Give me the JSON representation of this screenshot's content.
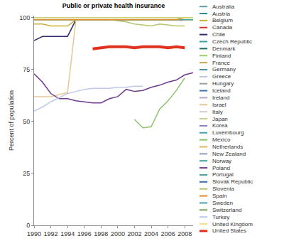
{
  "chart_data": {
    "type": "line",
    "title": "Public or private health insurance",
    "y_label": "Percent of population",
    "x": [
      1990,
      1991,
      1992,
      1993,
      1994,
      1995,
      1996,
      1997,
      1998,
      1999,
      2000,
      2001,
      2002,
      2003,
      2004,
      2005,
      2006,
      2007,
      2008,
      2009
    ],
    "xlim": [
      1990,
      2009
    ],
    "xticks": [
      1990,
      1992,
      1994,
      1996,
      1998,
      2000,
      2002,
      2004,
      2006,
      2008
    ],
    "ylim": [
      0,
      101
    ],
    "yticks": [
      0,
      25,
      50,
      75,
      100
    ],
    "grid": false,
    "series": [
      {
        "name": "Australia",
        "color": "#5f9ea0",
        "values": [
          100,
          100,
          100,
          100,
          100,
          100,
          100,
          100,
          100,
          100,
          100,
          100,
          100,
          100,
          100,
          100,
          100,
          100,
          100,
          100
        ]
      },
      {
        "name": "Austria",
        "color": "#2e8b8b",
        "values": [
          99,
          99,
          99,
          99,
          99,
          99,
          99,
          99,
          99,
          99,
          99,
          99,
          99,
          99,
          99,
          99,
          99,
          99,
          99,
          99
        ]
      },
      {
        "name": "Belgium",
        "color": "#c9b037",
        "values": [
          97,
          97,
          96,
          96,
          96,
          99,
          99,
          99,
          99,
          99,
          99,
          99,
          99,
          99,
          99,
          99,
          99,
          99,
          99,
          99
        ]
      },
      {
        "name": "Canada",
        "color": "#d9331f",
        "values": [
          100,
          100,
          100,
          100,
          100,
          100,
          100,
          100,
          100,
          100,
          100,
          100,
          100,
          100,
          100,
          100,
          100,
          100,
          100,
          100
        ]
      },
      {
        "name": "Chile",
        "color": "#2f2f6b",
        "values": [
          89,
          91,
          91,
          91,
          91,
          99,
          99,
          99,
          99,
          99,
          99,
          99,
          99,
          99,
          99,
          99,
          99,
          99,
          99,
          null
        ]
      },
      {
        "name": "Czech Republic",
        "color": "#3aa0a0",
        "values": [
          100,
          100,
          100,
          100,
          100,
          100,
          100,
          100,
          100,
          100,
          100,
          100,
          100,
          100,
          100,
          100,
          100,
          100,
          100,
          100
        ]
      },
      {
        "name": "Denmark",
        "color": "#1f6f5f",
        "values": [
          100,
          100,
          100,
          100,
          100,
          100,
          100,
          100,
          100,
          100,
          100,
          100,
          100,
          100,
          100,
          100,
          100,
          100,
          100,
          100
        ]
      },
      {
        "name": "Finland",
        "color": "#9acd6e",
        "values": [
          100,
          100,
          100,
          100,
          100,
          100,
          100,
          100,
          100,
          100,
          100,
          100,
          100,
          100,
          100,
          100,
          100,
          100,
          100,
          100
        ]
      },
      {
        "name": "France",
        "color": "#d2a35a",
        "values": [
          100,
          100,
          100,
          100,
          100,
          100,
          100,
          100,
          100,
          100,
          100,
          100,
          100,
          100,
          100,
          100,
          100,
          100,
          100,
          100
        ]
      },
      {
        "name": "Germany",
        "color": "#4f8fa8",
        "values": [
          100,
          100,
          100,
          100,
          100,
          100,
          100,
          100,
          100,
          100,
          100,
          100,
          100,
          100,
          100,
          100,
          100,
          100,
          100,
          100
        ]
      },
      {
        "name": "Greece",
        "color": "#b8c8d8",
        "values": [
          100,
          100,
          100,
          100,
          100,
          100,
          100,
          100,
          100,
          100,
          100,
          100,
          100,
          100,
          100,
          100,
          100,
          100,
          100,
          100
        ]
      },
      {
        "name": "Hungary",
        "color": "#9e9e9e",
        "values": [
          100,
          100,
          100,
          100,
          100,
          100,
          100,
          100,
          100,
          100,
          100,
          100,
          100,
          100,
          100,
          100,
          100,
          100,
          100,
          100
        ]
      },
      {
        "name": "Iceland",
        "color": "#3f74b8",
        "values": [
          100,
          100,
          100,
          100,
          100,
          100,
          100,
          100,
          100,
          100,
          100,
          100,
          100,
          100,
          100,
          100,
          100,
          100,
          100,
          100
        ]
      },
      {
        "name": "Ireland",
        "color": "#b7a3d1",
        "values": [
          100,
          100,
          100,
          100,
          100,
          100,
          100,
          100,
          100,
          100,
          100,
          100,
          100,
          100,
          100,
          100,
          100,
          100,
          100,
          100
        ]
      },
      {
        "name": "Israel",
        "color": "#e6c896",
        "values": [
          62,
          62,
          62,
          63,
          64,
          99,
          99,
          99,
          99,
          99,
          99,
          99,
          99,
          99,
          99,
          99,
          99,
          99,
          99,
          99
        ]
      },
      {
        "name": "Italy",
        "color": "#cfcfcf",
        "values": [
          100,
          100,
          100,
          100,
          100,
          100,
          100,
          100,
          100,
          100,
          100,
          100,
          100,
          100,
          100,
          100,
          100,
          100,
          100,
          100
        ]
      },
      {
        "name": "Japan",
        "color": "#c8cf8a",
        "values": [
          100,
          100,
          100,
          100,
          100,
          100,
          100,
          100,
          100,
          100,
          100,
          100,
          100,
          100,
          100,
          100,
          100,
          100,
          100,
          100
        ]
      },
      {
        "name": "Korea",
        "color": "#8a7fb8",
        "values": [
          100,
          100,
          100,
          100,
          100,
          100,
          100,
          100,
          100,
          100,
          100,
          100,
          100,
          100,
          100,
          100,
          100,
          100,
          100,
          100
        ]
      },
      {
        "name": "Luxembourg",
        "color": "#4aa3a3",
        "values": [
          99,
          99,
          99,
          99,
          99,
          99,
          99,
          99,
          99,
          99,
          99,
          99,
          99,
          99,
          99,
          99,
          99,
          99,
          99,
          99
        ]
      },
      {
        "name": "Mexico",
        "color": "#8dc26f",
        "values": [
          null,
          null,
          null,
          null,
          null,
          null,
          null,
          null,
          null,
          null,
          null,
          null,
          51,
          47,
          47.5,
          56,
          60,
          65,
          71,
          null
        ]
      },
      {
        "name": "Netherlands",
        "color": "#d9b95f",
        "values": [
          100,
          100,
          100,
          100,
          100,
          100,
          100,
          100,
          100,
          100,
          100,
          100,
          100,
          100,
          100,
          100,
          100,
          100,
          100,
          100
        ]
      },
      {
        "name": "New Zealand",
        "color": "#8aa0b8",
        "values": [
          100,
          100,
          100,
          100,
          100,
          100,
          100,
          100,
          100,
          100,
          100,
          100,
          100,
          100,
          100,
          100,
          100,
          100,
          100,
          100
        ]
      },
      {
        "name": "Norway",
        "color": "#3f9f9f",
        "values": [
          100,
          100,
          100,
          100,
          100,
          100,
          100,
          100,
          100,
          100,
          100,
          100,
          100,
          100,
          100,
          100,
          100,
          100,
          100,
          100
        ]
      },
      {
        "name": "Poland",
        "color": "#6e3a8c",
        "values": [
          73,
          69,
          63.5,
          61,
          61,
          60,
          59.5,
          59,
          59,
          61,
          62,
          65.5,
          64.5,
          65,
          66.5,
          67.5,
          69,
          70,
          72.5,
          73.5
        ]
      },
      {
        "name": "Portugal",
        "color": "#4c9f9c",
        "values": [
          100,
          100,
          100,
          100,
          100,
          100,
          100,
          100,
          100,
          100,
          100,
          100,
          100,
          100,
          100,
          100,
          100,
          100,
          100,
          100
        ]
      },
      {
        "name": "Slovak Republic",
        "color": "#3a6fb0",
        "values": [
          100,
          100,
          100,
          100,
          100,
          100,
          100,
          100,
          100,
          100,
          100,
          100,
          100,
          100,
          100,
          100,
          100,
          100,
          100,
          100
        ]
      },
      {
        "name": "Slovenia",
        "color": "#b5c46e",
        "values": [
          99,
          99,
          99,
          99,
          99,
          99,
          99,
          99,
          99,
          99,
          98.5,
          98,
          97,
          96.5,
          96,
          97,
          96.5,
          96,
          96,
          null
        ]
      },
      {
        "name": "Spain",
        "color": "#e08a2e",
        "values": [
          99,
          99,
          99,
          99,
          99,
          99,
          99,
          99,
          99,
          99,
          99,
          99,
          99,
          99,
          99,
          99,
          99,
          99,
          100,
          100
        ]
      },
      {
        "name": "Sweden",
        "color": "#4aa3a8",
        "values": [
          100,
          100,
          100,
          100,
          100,
          100,
          100,
          100,
          100,
          100,
          100,
          100,
          100,
          100,
          100,
          100,
          100,
          100,
          100,
          100
        ]
      },
      {
        "name": "Switzerland",
        "color": "#6fa84f",
        "values": [
          100,
          100,
          100,
          100,
          100,
          100,
          100,
          100,
          100,
          100,
          100,
          100,
          100,
          100,
          100,
          100,
          100,
          100,
          100,
          100
        ]
      },
      {
        "name": "Turkey",
        "color": "#c0c8ea",
        "values": [
          55,
          57,
          59.5,
          61.5,
          63.5,
          64.5,
          65.5,
          66,
          66,
          66,
          66.5,
          66.5,
          67,
          67,
          null,
          null,
          null,
          null,
          null,
          null
        ]
      },
      {
        "name": "United Kingdom",
        "color": "#f0e08a",
        "values": [
          100,
          100,
          100,
          100,
          100,
          100,
          100,
          100,
          100,
          100,
          100,
          100,
          100,
          100,
          100,
          100,
          100,
          100,
          100,
          100
        ]
      },
      {
        "name": "United States",
        "color": "#e0301e",
        "line_style": "bold",
        "values": [
          null,
          null,
          null,
          null,
          null,
          null,
          null,
          85,
          85.5,
          86,
          86,
          86,
          85.5,
          86,
          86,
          86,
          85.5,
          86,
          85.5,
          null
        ]
      }
    ]
  }
}
